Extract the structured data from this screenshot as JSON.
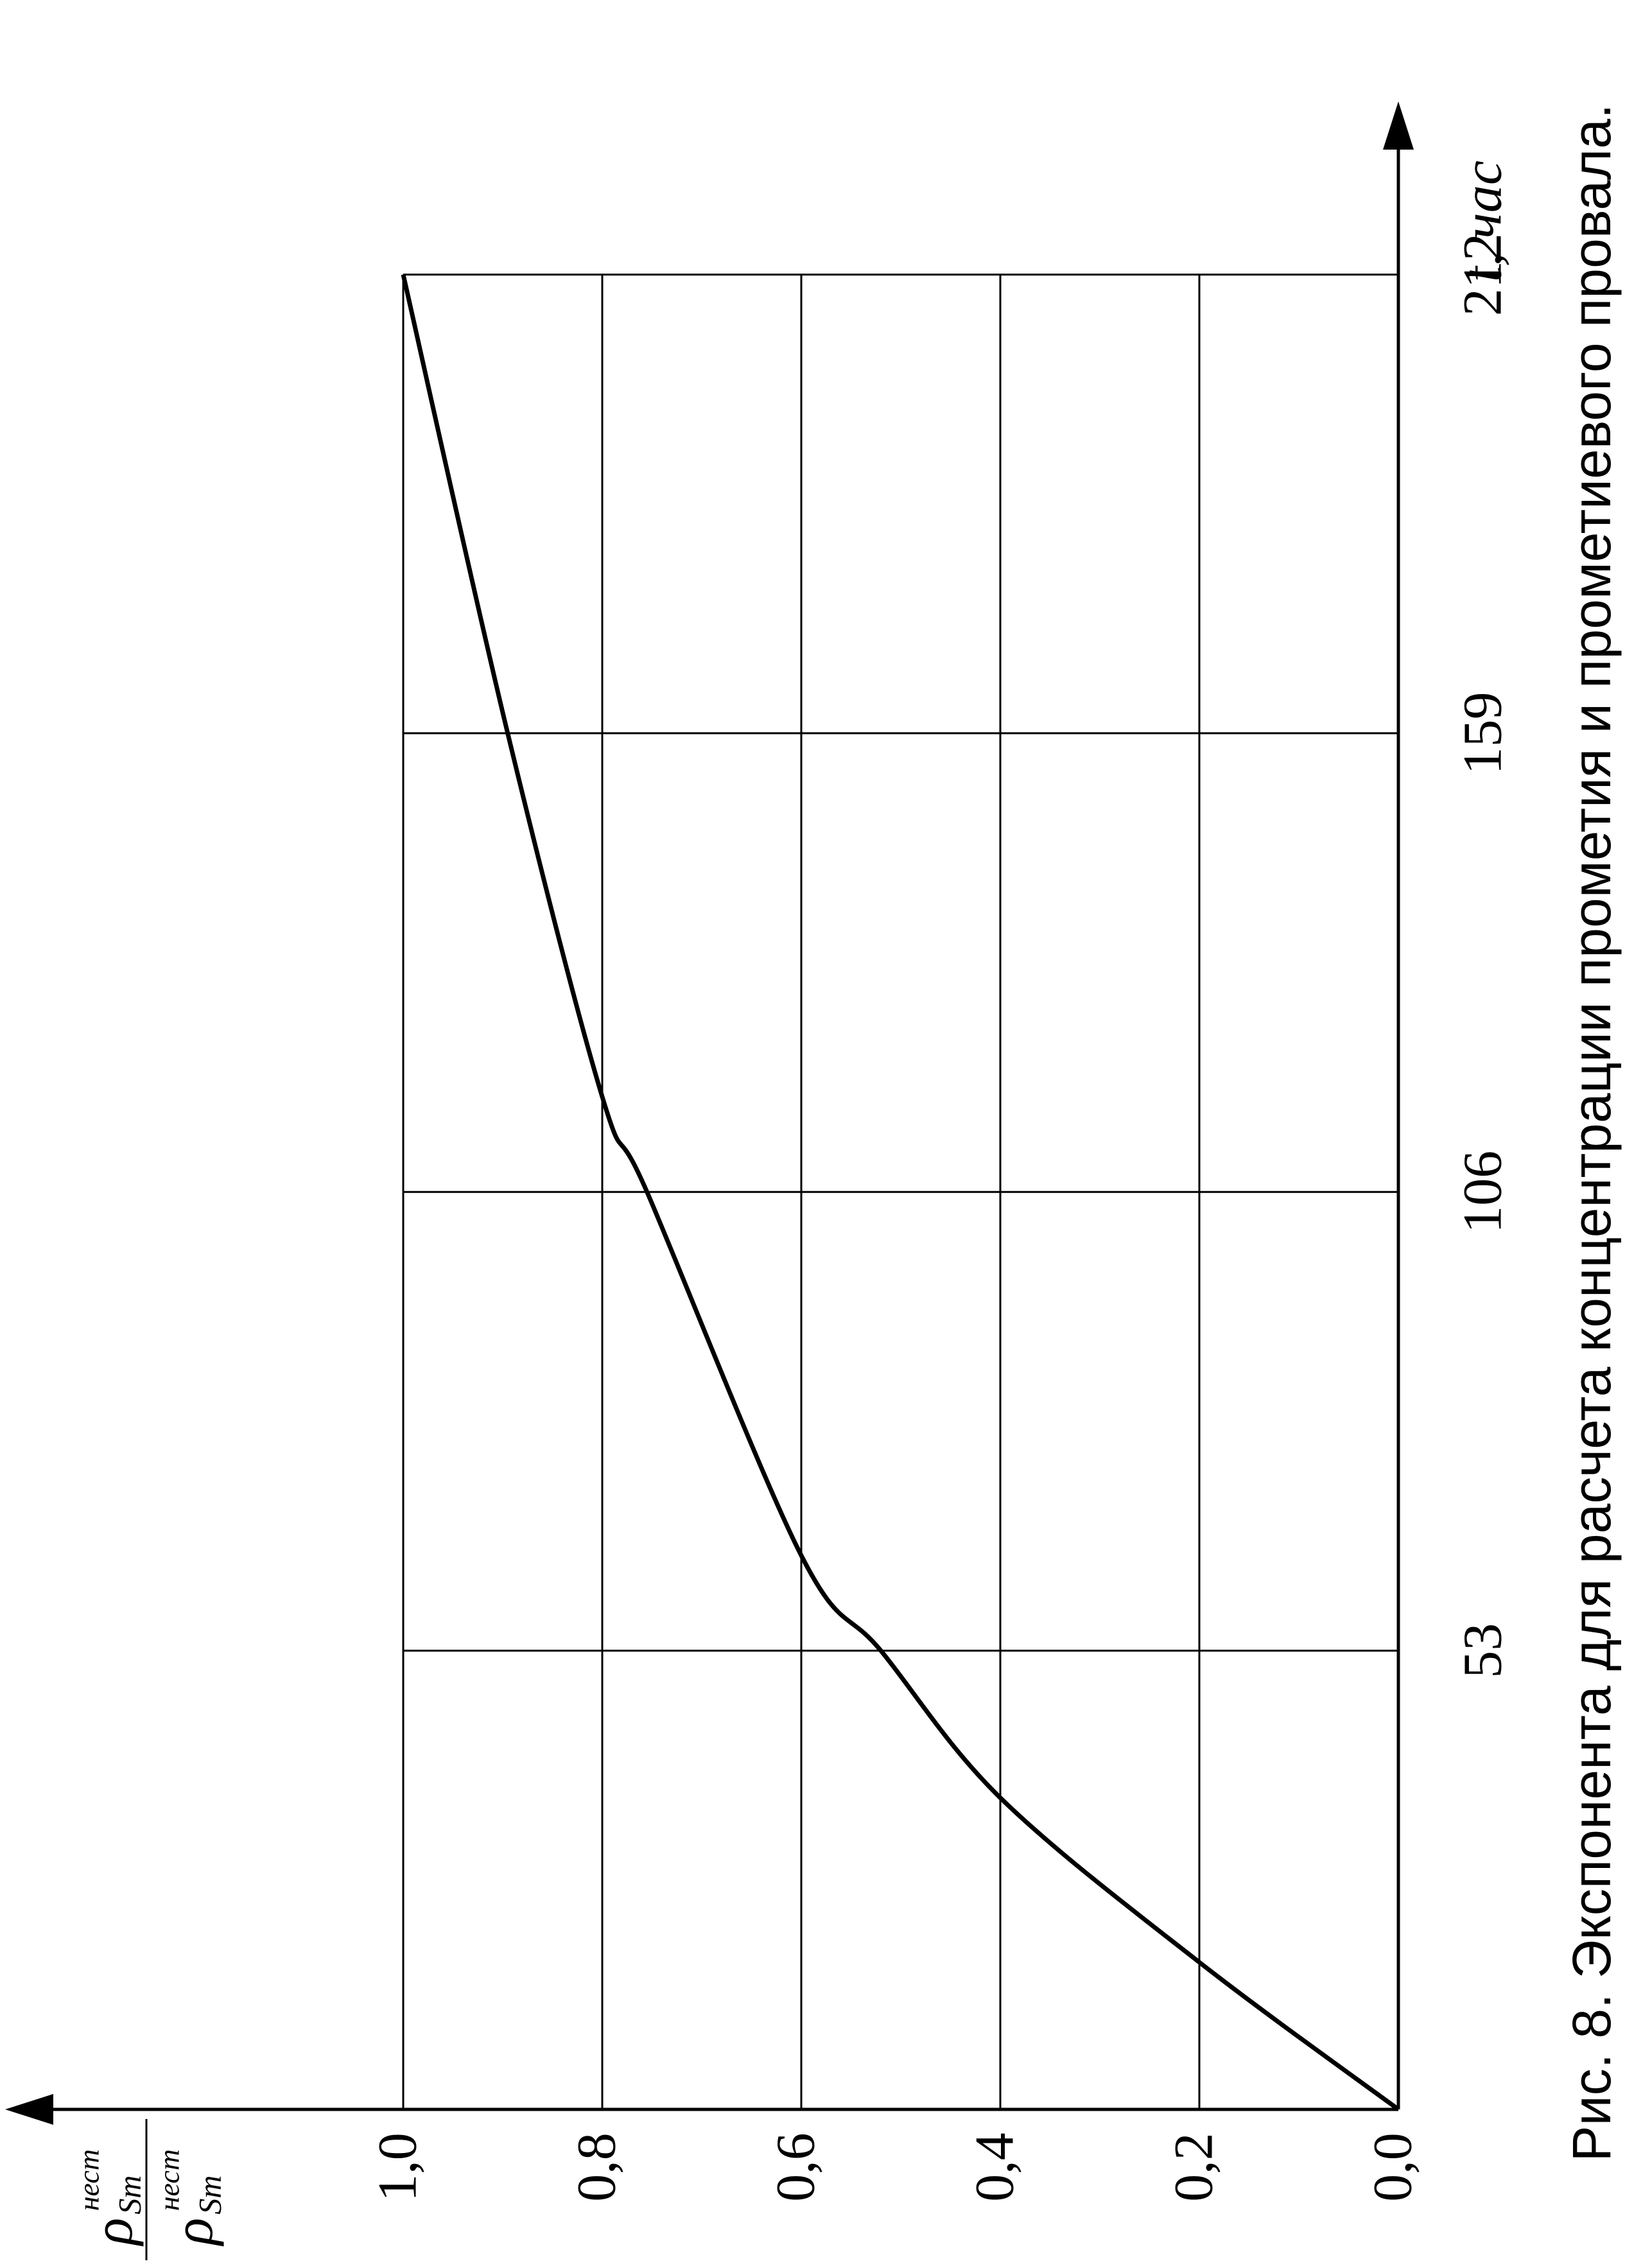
{
  "chart_data": {
    "type": "line",
    "title": "Рис. 8. Экспонента для расчета концентрации прометия и прометиевого провала.",
    "xlabel": "t, час",
    "ylabel": {
      "numerator": {
        "symbol": "ρ",
        "subscript": "Sm",
        "superscript": "нест"
      },
      "denominator": {
        "symbol": "ρ",
        "subscript": "Sm",
        "superscript": "нест"
      }
    },
    "x": [
      0,
      17,
      36,
      53,
      64,
      106,
      117,
      159,
      212
    ],
    "values": [
      0,
      0.2,
      0.4,
      0.52,
      0.6,
      0.755,
      0.8,
      0.895,
      1.0
    ],
    "color": "#000000",
    "xlim": [
      0,
      232
    ],
    "xticks": [
      53,
      106,
      159,
      212
    ],
    "ylim": [
      0,
      1.4
    ],
    "yticks": [
      {
        "value": 0,
        "label": "0,0"
      },
      {
        "value": 0.2,
        "label": "0,2"
      },
      {
        "value": 0.4,
        "label": "0,4"
      },
      {
        "value": 0.6,
        "label": "0,6"
      },
      {
        "value": 0.8,
        "label": "0,8"
      },
      {
        "value": 1.0,
        "label": "1,0"
      }
    ],
    "grid": true
  }
}
